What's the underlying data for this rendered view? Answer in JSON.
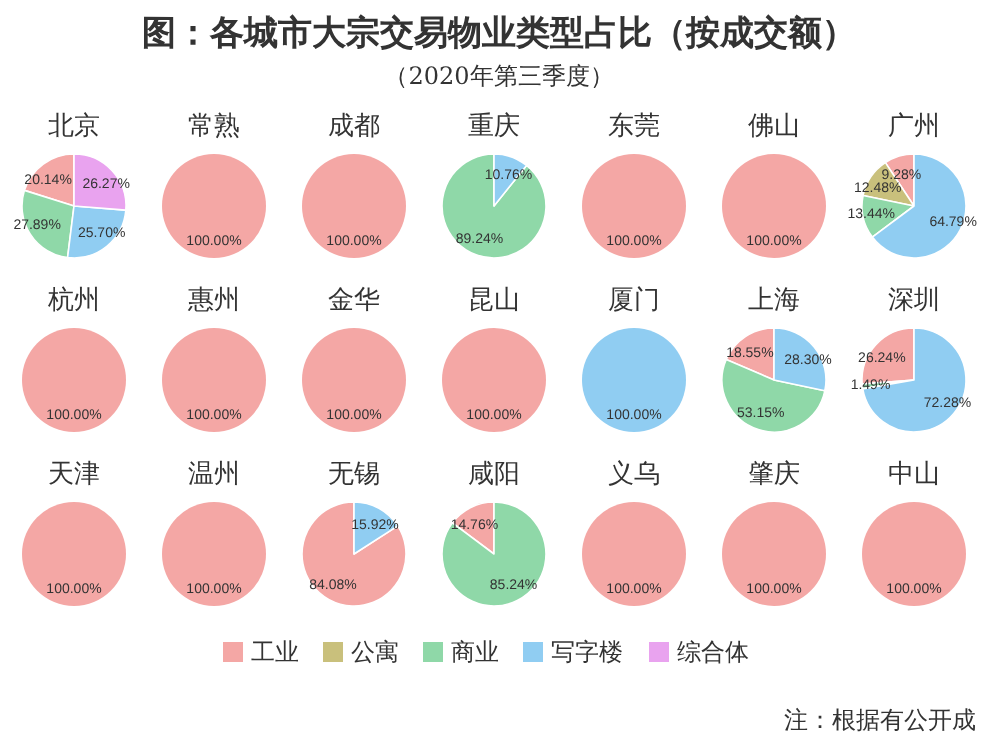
{
  "chart_data": [
    {
      "type": "other",
      "title": "图：各城市大宗交易物业类型占比（按成交额）",
      "subtitle": "（2020年第三季度）",
      "annotations": [
        "注：根据有公开成"
      ]
    },
    {
      "type": "pie",
      "title": "北京",
      "legend": "bottom",
      "categories": [
        "工业",
        "公寓",
        "商业",
        "写字楼",
        "综合体"
      ],
      "values": [
        20.14,
        0,
        27.89,
        25.7,
        26.27
      ],
      "colors": [
        "#f4a7a5",
        "#c9c07c",
        "#8fd8a8",
        "#90cdf2",
        "#e9a3ef"
      ],
      "value_labels": [
        "20.14%",
        null,
        "27.89%",
        "25.70%",
        "26.27%"
      ]
    },
    {
      "type": "pie",
      "title": "常熟",
      "categories": [
        null
      ],
      "values": [
        100
      ],
      "colors": [
        "#f4a7a5"
      ],
      "value_labels": [
        "100.00%"
      ]
    },
    {
      "type": "pie",
      "title": "成都",
      "categories": [
        null
      ],
      "values": [
        100
      ],
      "colors": [
        "#f4a7a5"
      ],
      "value_labels": [
        "100.00%"
      ]
    },
    {
      "type": "pie",
      "title": "重庆",
      "categories": [
        null,
        null
      ],
      "values": [
        89.24,
        10.76
      ],
      "colors": [
        "#8fd8a8",
        "#90cdf2"
      ],
      "value_labels": [
        "89.24%",
        "10.76%"
      ]
    },
    {
      "type": "pie",
      "title": "东莞",
      "categories": [
        null
      ],
      "values": [
        100
      ],
      "colors": [
        "#f4a7a5"
      ],
      "value_labels": [
        "100.00%"
      ]
    },
    {
      "type": "pie",
      "title": "佛山",
      "categories": [
        null
      ],
      "values": [
        100
      ],
      "colors": [
        "#f4a7a5"
      ],
      "value_labels": [
        "100.00%"
      ]
    },
    {
      "type": "pie",
      "title": "广州",
      "categories": [
        null,
        null,
        null,
        null
      ],
      "values": [
        9.28,
        12.48,
        13.44,
        64.79
      ],
      "colors": [
        "#f4a7a5",
        "#c9c07c",
        "#8fd8a8",
        "#90cdf2"
      ],
      "value_labels": [
        "9.28%",
        "12.48%",
        "13.44%",
        "64.79%"
      ]
    },
    {
      "type": "pie",
      "title": "杭州",
      "categories": [
        null
      ],
      "values": [
        100
      ],
      "colors": [
        "#f4a7a5"
      ],
      "value_labels": [
        "100.00%"
      ]
    },
    {
      "type": "pie",
      "title": "惠州",
      "categories": [
        null
      ],
      "values": [
        100
      ],
      "colors": [
        "#f4a7a5"
      ],
      "value_labels": [
        "100.00%"
      ]
    },
    {
      "type": "pie",
      "title": "金华",
      "categories": [
        null
      ],
      "values": [
        100
      ],
      "colors": [
        "#f4a7a5"
      ],
      "value_labels": [
        "100.00%"
      ]
    },
    {
      "type": "pie",
      "title": "昆山",
      "categories": [
        null
      ],
      "values": [
        100
      ],
      "colors": [
        "#f4a7a5"
      ],
      "value_labels": [
        "100.00%"
      ]
    },
    {
      "type": "pie",
      "title": "厦门",
      "categories": [
        null
      ],
      "values": [
        100
      ],
      "colors": [
        "#90cdf2"
      ],
      "value_labels": [
        "100.00%"
      ]
    },
    {
      "type": "pie",
      "title": "上海",
      "categories": [
        null,
        null,
        null
      ],
      "values": [
        18.55,
        53.15,
        28.3
      ],
      "colors": [
        "#f4a7a5",
        "#8fd8a8",
        "#90cdf2"
      ],
      "value_labels": [
        "18.55%",
        "53.15%",
        "28.30%"
      ]
    },
    {
      "type": "pie",
      "title": "深圳",
      "categories": [
        null,
        null,
        null
      ],
      "values": [
        26.24,
        1.49,
        72.28
      ],
      "colors": [
        "#f4a7a5",
        "#8fd8a8",
        "#90cdf2"
      ],
      "value_labels": [
        "26.24%",
        "1.49%",
        "72.28%"
      ]
    },
    {
      "type": "pie",
      "title": "天津",
      "categories": [
        null
      ],
      "values": [
        100
      ],
      "colors": [
        "#f4a7a5"
      ],
      "value_labels": [
        "100.00%"
      ]
    },
    {
      "type": "pie",
      "title": "温州",
      "categories": [
        null
      ],
      "values": [
        100
      ],
      "colors": [
        "#f4a7a5"
      ],
      "value_labels": [
        "100.00%"
      ]
    },
    {
      "type": "pie",
      "title": "无锡",
      "categories": [
        null,
        null
      ],
      "values": [
        84.08,
        15.92
      ],
      "colors": [
        "#f4a7a5",
        "#90cdf2"
      ],
      "value_labels": [
        "84.08%",
        "15.92%"
      ]
    },
    {
      "type": "pie",
      "title": "咸阳",
      "categories": [
        null,
        null
      ],
      "values": [
        14.76,
        85.24
      ],
      "colors": [
        "#f4a7a5",
        "#8fd8a8"
      ],
      "value_labels": [
        "14.76%",
        "85.24%"
      ]
    },
    {
      "type": "pie",
      "title": "义乌",
      "categories": [
        null
      ],
      "values": [
        100
      ],
      "colors": [
        "#f4a7a5"
      ],
      "value_labels": [
        "100.00%"
      ]
    },
    {
      "type": "pie",
      "title": "肇庆",
      "categories": [
        null
      ],
      "values": [
        100
      ],
      "colors": [
        "#f4a7a5"
      ],
      "value_labels": [
        "100.00%"
      ]
    },
    {
      "type": "pie",
      "title": "中山",
      "categories": [
        null
      ],
      "values": [
        100
      ],
      "colors": [
        "#f4a7a5"
      ],
      "value_labels": [
        "100.00%"
      ]
    }
  ]
}
